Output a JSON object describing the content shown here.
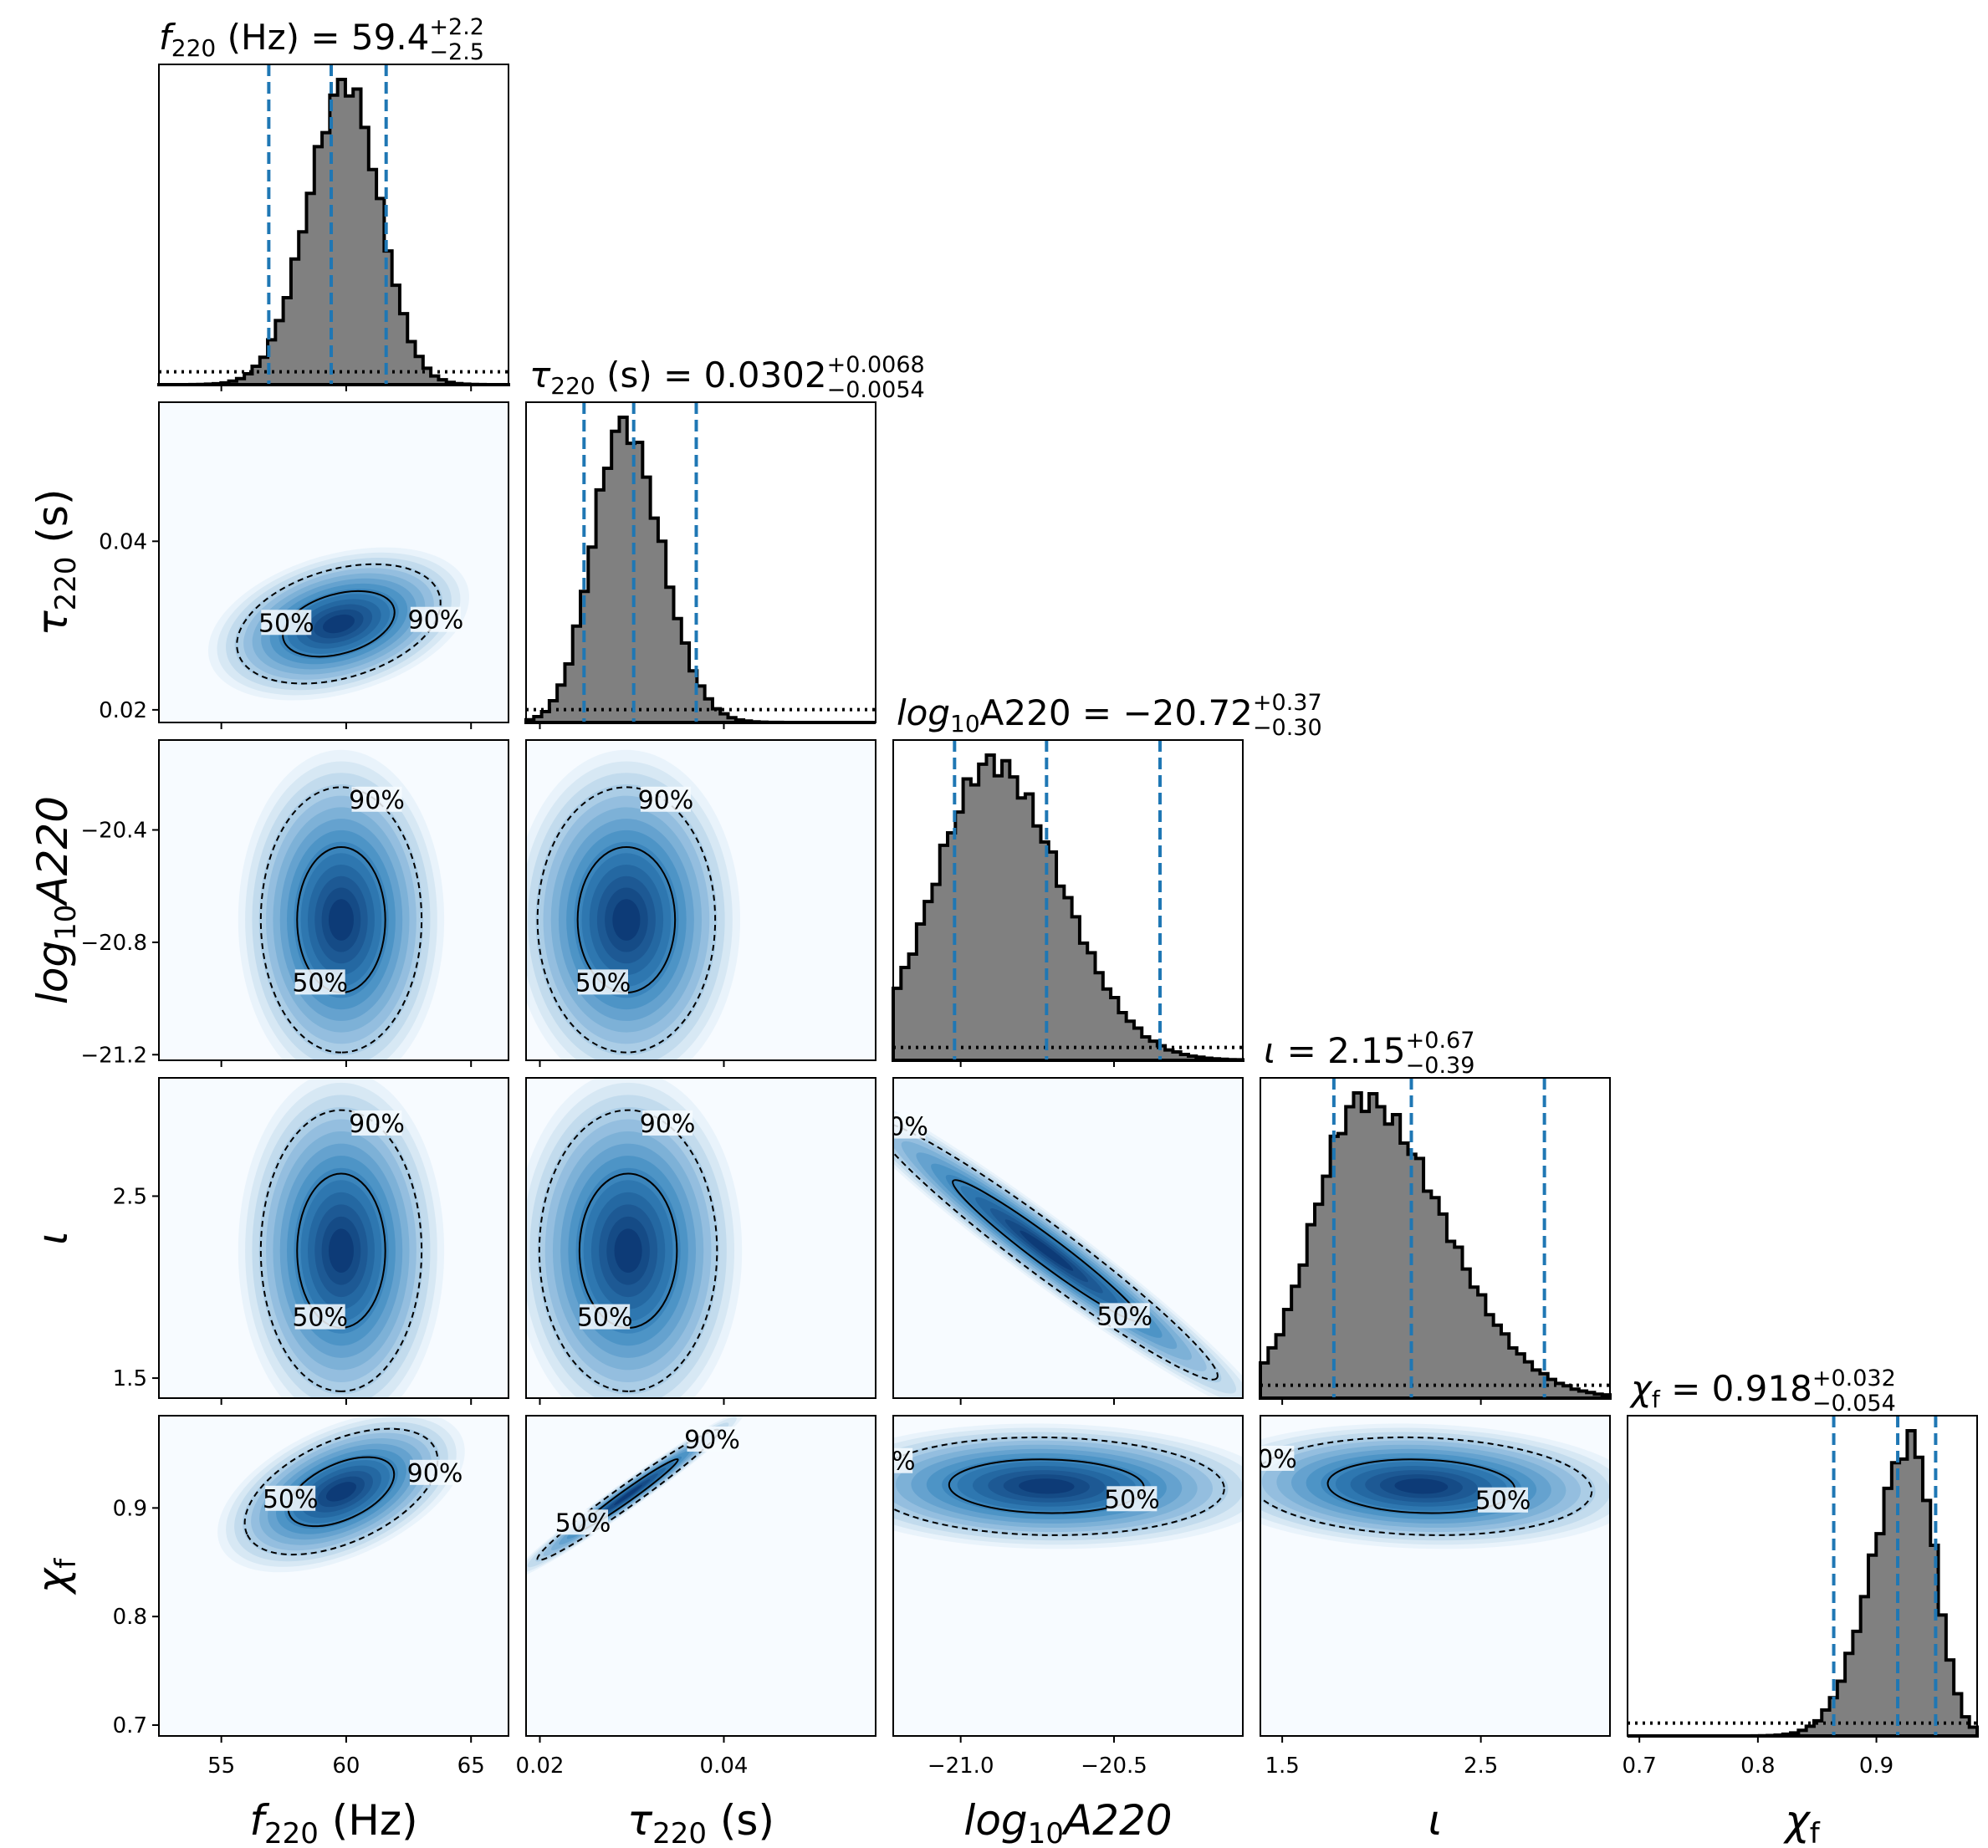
{
  "colors": {
    "histogram_fill": "#808080",
    "histogram_edge": "#000000",
    "quantile_line": "#1f77b4",
    "density_low": "#f7fbff",
    "density_high": "#08306b",
    "contour": "#000000",
    "prior": "#000000"
  },
  "chart_data": {
    "type": "corner",
    "parameters": [
      {
        "key": "f220",
        "label": "f220 (Hz)",
        "label_base": "f",
        "label_sub": "220",
        "label_suffix": " (Hz)",
        "title": "f220 (Hz) = 59.4 +2.2 −2.5",
        "title_value": " = 59.4",
        "title_plus": "+2.2",
        "title_minus": "−2.5",
        "median": 59.4,
        "err_plus": 2.2,
        "err_minus": 2.5,
        "range": [
          52.5,
          66.5
        ],
        "ticks": [
          55,
          60,
          65
        ],
        "tick_labels": [
          "55",
          "60",
          "65"
        ],
        "row_ticks": [],
        "row_tick_labels": [],
        "hist_peak": 60
      },
      {
        "key": "tau220",
        "label": "τ220 (s)",
        "label_base": "τ",
        "label_sub": "220",
        "label_suffix": " (s)",
        "title": "τ220 (s) = 0.0302 +0.0068 −0.0054",
        "title_value": " = 0.0302",
        "title_plus": "+0.0068",
        "title_minus": "−0.0054",
        "median": 0.0302,
        "err_plus": 0.0068,
        "err_minus": 0.0054,
        "range": [
          0.0185,
          0.0565
        ],
        "ticks": [
          0.02,
          0.04
        ],
        "tick_labels": [
          "0.02",
          "0.04"
        ],
        "row_ticks": [
          0.04,
          0.02
        ],
        "row_tick_labels": [
          "0.04",
          "0.02"
        ],
        "hist_peak": 0.029
      },
      {
        "key": "log10A220",
        "label": "log10A220",
        "label_base": "log",
        "label_sub": "10",
        "label_suffix": "A220",
        "title": "log10A220 = −20.72 +0.37 −0.30",
        "title_value": " = −20.72",
        "title_plus": "+0.37",
        "title_minus": "−0.30",
        "median": -20.72,
        "err_plus": 0.37,
        "err_minus": 0.3,
        "range": [
          -21.22,
          -20.08
        ],
        "ticks": [
          -21.0,
          -20.5
        ],
        "tick_labels": [
          "−21.0",
          "−20.5"
        ],
        "row_ticks": [
          -20.4,
          -20.8,
          -21.2
        ],
        "row_tick_labels": [
          "−20.4",
          "−20.8",
          "−21.2"
        ],
        "hist_peak": -20.9
      },
      {
        "key": "iota",
        "label": "ι",
        "label_base": "ι",
        "label_sub": "",
        "label_suffix": "",
        "title": "ι = 2.15 +0.67 −0.39",
        "title_value": " = 2.15",
        "title_plus": "+0.67",
        "title_minus": "−0.39",
        "median": 2.15,
        "err_plus": 0.67,
        "err_minus": 0.39,
        "range": [
          1.39,
          3.15
        ],
        "ticks": [
          1.5,
          2.5
        ],
        "tick_labels": [
          "1.5",
          "2.5"
        ],
        "row_ticks": [
          2.5,
          1.5
        ],
        "row_tick_labels": [
          "2.5",
          "1.5"
        ],
        "hist_peak": 1.9
      },
      {
        "key": "chif",
        "label": "χf",
        "label_base": "χ",
        "label_sub": "f",
        "label_suffix": "",
        "title": "χf = 0.918 +0.032 −0.054",
        "title_value": " = 0.918",
        "title_plus": "+0.032",
        "title_minus": "−0.054",
        "median": 0.918,
        "err_plus": 0.032,
        "err_minus": 0.054,
        "range": [
          0.69,
          0.985
        ],
        "ticks": [
          0.7,
          0.8,
          0.9
        ],
        "tick_labels": [
          "0.7",
          "0.8",
          "0.9"
        ],
        "row_ticks": [
          0.9,
          0.8,
          0.7
        ],
        "row_tick_labels": [
          "0.9",
          "0.8",
          "0.7"
        ],
        "hist_peak": 0.93
      }
    ],
    "contour_levels": [
      "90%",
      "50%"
    ],
    "pairs": [
      {
        "x": "f220",
        "y": "tau220",
        "center": [
          59.7,
          0.0302
        ],
        "sx": 1.9,
        "sy": 0.0033,
        "rho": 0.35
      },
      {
        "x": "f220",
        "y": "log10A220",
        "center": [
          59.8,
          -20.72
        ],
        "sx": 1.5,
        "sy": 0.22,
        "rho": 0.0
      },
      {
        "x": "tau220",
        "y": "log10A220",
        "center": [
          0.0294,
          -20.72
        ],
        "sx": 0.0045,
        "sy": 0.22,
        "rho": 0.0
      },
      {
        "x": "f220",
        "y": "iota",
        "center": [
          59.8,
          2.2
        ],
        "sx": 1.5,
        "sy": 0.36,
        "rho": 0.0
      },
      {
        "x": "tau220",
        "y": "iota",
        "center": [
          0.0296,
          2.2
        ],
        "sx": 0.0045,
        "sy": 0.36,
        "rho": 0.0
      },
      {
        "x": "log10A220",
        "y": "iota",
        "center": [
          -20.72,
          2.2
        ],
        "sx": 0.26,
        "sy": 0.33,
        "rho": -0.97
      },
      {
        "x": "f220",
        "y": "chif",
        "center": [
          59.8,
          0.915
        ],
        "sx": 1.8,
        "sy": 0.027,
        "rho": 0.5
      },
      {
        "x": "tau220",
        "y": "chif",
        "center": [
          0.0296,
          0.912
        ],
        "sx": 0.0046,
        "sy": 0.028,
        "rho": 0.98
      },
      {
        "x": "log10A220",
        "y": "chif",
        "center": [
          -20.72,
          0.92
        ],
        "sx": 0.27,
        "sy": 0.021,
        "rho": -0.05
      },
      {
        "x": "iota",
        "y": "chif",
        "center": [
          2.2,
          0.92
        ],
        "sx": 0.4,
        "sy": 0.021,
        "rho": -0.1
      }
    ]
  }
}
